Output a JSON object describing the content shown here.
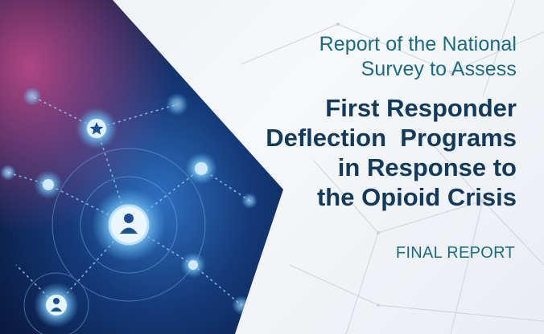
{
  "cover": {
    "subtitle_line1": "Report of the National",
    "subtitle_line2": "Survey to Assess",
    "title_line1": "First Responder",
    "title_line2": "Deflection  Programs",
    "title_line3": "in Response to",
    "title_line4": "the Opioid Crisis",
    "report_type": "FINAL REPORT"
  },
  "colors": {
    "subtitle": "#1a6b84",
    "title": "#123a5c",
    "panel_dark": "#0a1f45",
    "node_glow": "#4fa8e6",
    "magenta_glow": "#c04a8a"
  },
  "icons": [
    "user-icon",
    "star-icon"
  ]
}
